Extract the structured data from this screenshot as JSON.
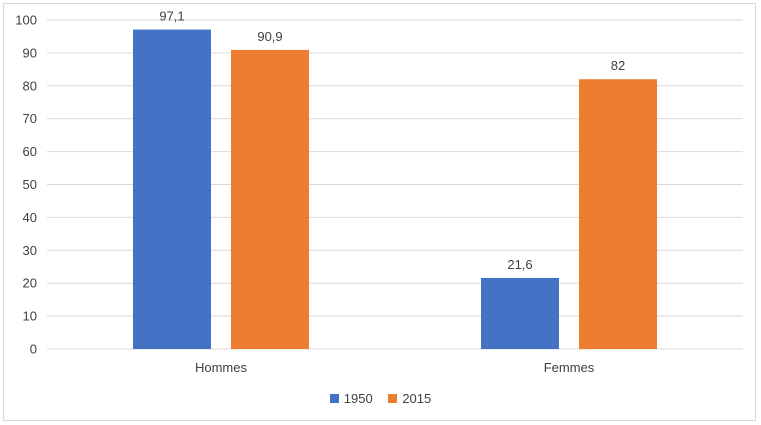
{
  "chart_data": {
    "type": "bar",
    "categories": [
      "Hommes",
      "Femmes"
    ],
    "series": [
      {
        "name": "1950",
        "values": [
          97.1,
          21.6
        ],
        "labels": [
          "97,1",
          "21,6"
        ],
        "color": "#4472C4"
      },
      {
        "name": "2015",
        "values": [
          90.9,
          82
        ],
        "labels": [
          "90,9",
          "82"
        ],
        "color": "#ED7D31"
      }
    ],
    "ylim": [
      0,
      100
    ],
    "yticks": [
      0,
      10,
      20,
      30,
      40,
      50,
      60,
      70,
      80,
      90,
      100
    ],
    "grid": true,
    "legend_position": "bottom",
    "title": "",
    "xlabel": "",
    "ylabel": ""
  }
}
